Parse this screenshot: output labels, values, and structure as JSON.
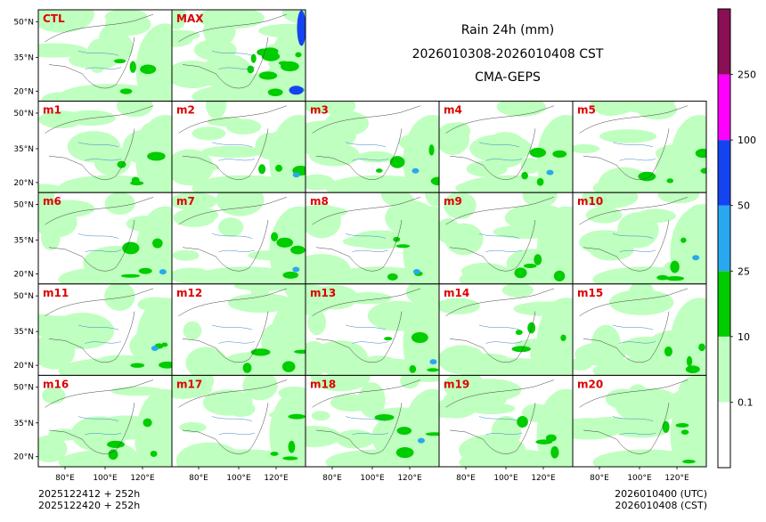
{
  "chart_data": {
    "type": "heatmap",
    "title_lines": [
      "Rain 24h (mm)",
      "2026010308-2026010408 CST",
      "CMA-GEPS"
    ],
    "panels": [
      "CTL",
      "MAX",
      "m1",
      "m2",
      "m3",
      "m4",
      "m5",
      "m6",
      "m7",
      "m8",
      "m9",
      "m10",
      "m11",
      "m12",
      "m13",
      "m14",
      "m15",
      "m16",
      "m17",
      "m18",
      "m19",
      "m20"
    ],
    "lat_ticks": [
      "50°N",
      "35°N",
      "20°N"
    ],
    "lon_ticks": [
      "80°E",
      "100°E",
      "120°E"
    ],
    "colorbar": {
      "levels": [
        "0.1",
        "10",
        "25",
        "50",
        "100",
        "250"
      ],
      "colors": [
        "#ffffff",
        "#bfffbf",
        "#00cc00",
        "#29a8f0",
        "#1444f0",
        "#ff00ff",
        "#8b0f55"
      ]
    },
    "footer_left": [
      "2025122412 + 252h",
      "2025122420 + 252h"
    ],
    "footer_right": [
      "2026010400 (UTC)",
      "2026010408 (CST)"
    ]
  },
  "colors": {
    "panel_label": "#dd0000",
    "border": "#000000"
  }
}
